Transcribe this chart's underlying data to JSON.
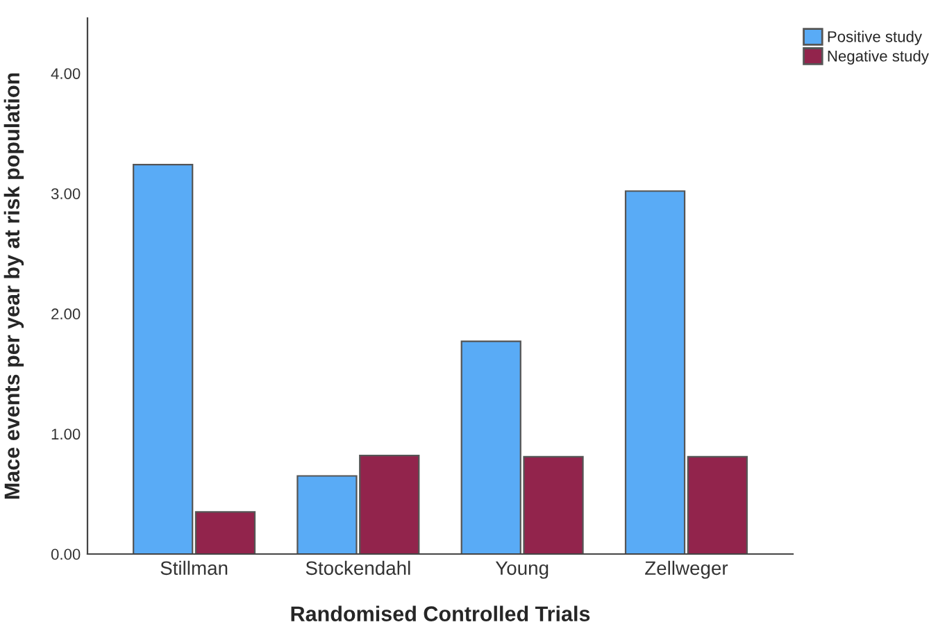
{
  "chart_data": {
    "type": "bar",
    "xlabel": "Randomised Controlled Trials",
    "ylabel": "Mace events per year by at risk population",
    "categories": [
      "Stillman",
      "Stockendahl",
      "Young",
      "Zellweger"
    ],
    "series": [
      {
        "name": "Positive study",
        "color": "#59abf6",
        "values": [
          3.24,
          0.65,
          1.77,
          3.02
        ]
      },
      {
        "name": "Negative study",
        "color": "#92244c",
        "values": [
          0.35,
          0.82,
          0.81,
          0.81
        ]
      }
    ],
    "ylim": [
      0,
      4.46
    ],
    "yticks": [
      {
        "value": 0,
        "label": "0.00"
      },
      {
        "value": 1,
        "label": "1.00"
      },
      {
        "value": 2,
        "label": "2.00"
      },
      {
        "value": 3,
        "label": "3.00"
      },
      {
        "value": 4,
        "label": "4.00"
      }
    ],
    "grid": false,
    "legend": "top right"
  }
}
